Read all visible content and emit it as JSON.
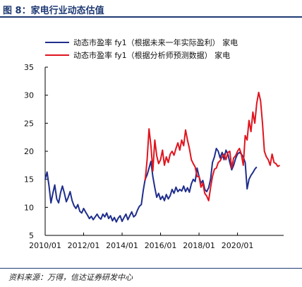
{
  "figure": {
    "title": "图 8：家电行业动态估值",
    "source": "资料来源：万得，信达证券研发中心"
  },
  "colors": {
    "series1": "#1f2e8c",
    "series2": "#e0141e",
    "axis": "#000000",
    "title": "#1f3a73"
  },
  "chart_data": {
    "type": "line",
    "title": "",
    "xlabel": "",
    "ylabel": "",
    "ylim": [
      5,
      35
    ],
    "yticks": [
      5,
      10,
      15,
      20,
      25,
      30,
      35
    ],
    "xlim": [
      2010.0,
      2022.4
    ],
    "xticks": [
      {
        "value": 2010.0,
        "label": "2010/01"
      },
      {
        "value": 2012.0,
        "label": "2012/01"
      },
      {
        "value": 2014.0,
        "label": "2014/01"
      },
      {
        "value": 2016.0,
        "label": "2016/01"
      },
      {
        "value": 2018.0,
        "label": "2018/01"
      },
      {
        "value": 2020.0,
        "label": "2020/01"
      }
    ],
    "grid": false,
    "legend_position": "top-left",
    "series": [
      {
        "name": "动态市盈率 fy1（根据未来一年实际盈利） 家电",
        "color": "#1f2e8c",
        "x": [
          2010.0,
          2010.1,
          2010.2,
          2010.3,
          2010.4,
          2010.5,
          2010.6,
          2010.7,
          2010.8,
          2010.9,
          2011.0,
          2011.1,
          2011.2,
          2011.3,
          2011.4,
          2011.5,
          2011.6,
          2011.7,
          2011.8,
          2011.9,
          2012.0,
          2012.1,
          2012.2,
          2012.3,
          2012.4,
          2012.5,
          2012.6,
          2012.7,
          2012.8,
          2012.9,
          2013.0,
          2013.1,
          2013.2,
          2013.3,
          2013.4,
          2013.5,
          2013.6,
          2013.7,
          2013.8,
          2013.9,
          2014.0,
          2014.1,
          2014.2,
          2014.3,
          2014.4,
          2014.5,
          2014.6,
          2014.7,
          2014.8,
          2014.9,
          2015.0,
          2015.1,
          2015.2,
          2015.3,
          2015.4,
          2015.5,
          2015.6,
          2015.7,
          2015.8,
          2015.9,
          2016.0,
          2016.1,
          2016.2,
          2016.3,
          2016.4,
          2016.5,
          2016.6,
          2016.7,
          2016.8,
          2016.9,
          2017.0,
          2017.1,
          2017.2,
          2017.3,
          2017.4,
          2017.5,
          2017.6,
          2017.7,
          2017.8,
          2017.9,
          2018.0,
          2018.1,
          2018.2,
          2018.3,
          2018.4,
          2018.5,
          2018.6,
          2018.7,
          2018.8,
          2018.9,
          2019.0,
          2019.1,
          2019.2,
          2019.3,
          2019.4,
          2019.5,
          2019.6,
          2019.7,
          2019.8,
          2019.9,
          2020.0,
          2020.1,
          2020.2,
          2020.3,
          2020.4,
          2020.5,
          2020.6,
          2020.7,
          2020.8,
          2020.9,
          2021.0
        ],
        "values": [
          15.0,
          16.3,
          13.8,
          10.8,
          12.5,
          14.0,
          11.5,
          10.8,
          12.6,
          13.8,
          12.5,
          11.0,
          11.8,
          12.8,
          11.2,
          10.3,
          9.8,
          10.5,
          9.3,
          9.0,
          9.8,
          9.2,
          8.6,
          8.0,
          8.4,
          7.8,
          8.3,
          8.8,
          8.2,
          7.9,
          8.8,
          8.3,
          9.0,
          8.0,
          8.5,
          7.6,
          8.2,
          7.4,
          8.1,
          8.5,
          7.5,
          8.2,
          8.8,
          7.8,
          8.5,
          9.2,
          8.3,
          8.6,
          9.5,
          10.2,
          10.5,
          13.0,
          15.0,
          15.8,
          17.0,
          18.2,
          15.5,
          13.5,
          11.8,
          12.5,
          11.4,
          12.0,
          11.2,
          12.3,
          11.5,
          12.1,
          13.2,
          12.5,
          13.6,
          12.8,
          13.2,
          12.9,
          13.8,
          12.8,
          13.5,
          12.7,
          14.2,
          15.0,
          14.6,
          17.0,
          15.5,
          14.3,
          14.8,
          13.2,
          12.8,
          13.5,
          15.0,
          18.0,
          19.0,
          20.5,
          20.0,
          18.8,
          19.8,
          18.5,
          20.2,
          19.5,
          18.0,
          16.7,
          17.5,
          18.7,
          19.5,
          19.8,
          19.5,
          19.0,
          18.0,
          13.3,
          15.0,
          15.7,
          16.2,
          16.8,
          17.2
        ]
      },
      {
        "name": "动态市盈率 fy1（根据分析师预测数据） 家电",
        "color": "#e0141e",
        "x": [
          2015.2,
          2015.3,
          2015.4,
          2015.5,
          2015.6,
          2015.7,
          2015.8,
          2015.9,
          2016.0,
          2016.1,
          2016.2,
          2016.3,
          2016.4,
          2016.5,
          2016.6,
          2016.7,
          2016.8,
          2016.9,
          2017.0,
          2017.1,
          2017.2,
          2017.3,
          2017.4,
          2017.5,
          2017.6,
          2017.7,
          2017.8,
          2017.9,
          2018.0,
          2018.1,
          2018.2,
          2018.3,
          2018.4,
          2018.5,
          2018.6,
          2018.7,
          2018.8,
          2018.9,
          2019.0,
          2019.1,
          2019.2,
          2019.3,
          2019.4,
          2019.5,
          2019.6,
          2019.7,
          2019.8,
          2019.9,
          2020.0,
          2020.1,
          2020.2,
          2020.3,
          2020.4,
          2020.5,
          2020.6,
          2020.7,
          2020.8,
          2020.9,
          2021.0,
          2021.1,
          2021.2,
          2021.3,
          2021.4,
          2021.5,
          2021.6,
          2021.7,
          2021.8,
          2021.9,
          2022.0,
          2022.1,
          2022.2
        ],
        "values": [
          14.8,
          18.5,
          24.0,
          21.0,
          16.5,
          22.0,
          19.2,
          17.8,
          18.5,
          20.2,
          17.5,
          19.0,
          18.0,
          19.5,
          20.0,
          19.3,
          20.5,
          21.5,
          20.2,
          22.0,
          21.0,
          23.8,
          22.0,
          20.5,
          18.5,
          17.8,
          17.2,
          15.5,
          15.5,
          13.6,
          14.3,
          12.5,
          12.0,
          11.2,
          13.5,
          15.5,
          16.8,
          17.0,
          18.0,
          18.3,
          19.0,
          19.5,
          18.5,
          19.8,
          20.0,
          17.0,
          18.8,
          19.2,
          20.0,
          20.5,
          19.5,
          17.5,
          22.8,
          22.0,
          25.5,
          23.5,
          27.0,
          25.0,
          28.5,
          30.5,
          29.0,
          25.0,
          20.0,
          19.0,
          18.5,
          17.5,
          19.5,
          18.0,
          17.8,
          17.3,
          17.5
        ]
      }
    ]
  }
}
